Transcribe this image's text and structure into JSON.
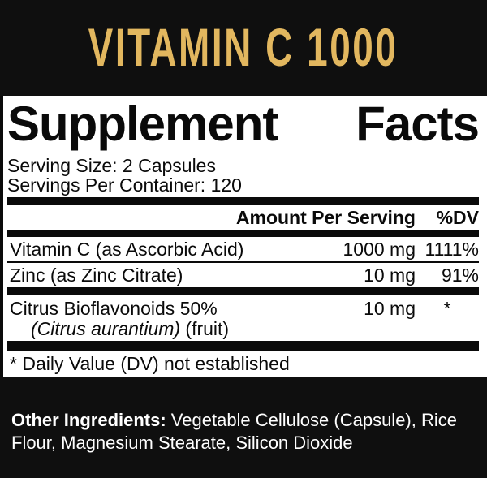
{
  "banner": {
    "title": "VITAMIN C 1000"
  },
  "panel": {
    "title_word1": "Supplement",
    "title_word2": "Facts",
    "serving_size": "Serving Size: 2 Capsules",
    "servings_per_container": "Servings Per Container: 120",
    "table": {
      "header": {
        "amount": "Amount Per Serving",
        "dv": "%DV"
      },
      "rows": [
        {
          "name": "Vitamin C (as Ascorbic Acid)",
          "amount": "1000 mg",
          "dv": "1111%"
        },
        {
          "name": "Zinc (as Zinc Citrate)",
          "amount": "10 mg",
          "dv": "91%"
        },
        {
          "name": "Citrus Bioflavonoids 50%",
          "name_line2_italic": "(Citrus aurantium)",
          "name_line2_rest": " (fruit)",
          "amount": "10 mg",
          "dv": "*"
        }
      ]
    },
    "footnote": "* Daily Value (DV) not established"
  },
  "footer": {
    "label": "Other Ingredients:",
    "text": " Vegetable Cellulose (Capsule), Rice Flour, Magnesium Stearate, Silicon Dioxide"
  },
  "colors": {
    "banner_background": "#0f0f0f",
    "banner_gold": "#e2b75f",
    "panel_background": "#ffffff",
    "text_black": "#0a0a0a",
    "footer_text": "#ffffff"
  }
}
